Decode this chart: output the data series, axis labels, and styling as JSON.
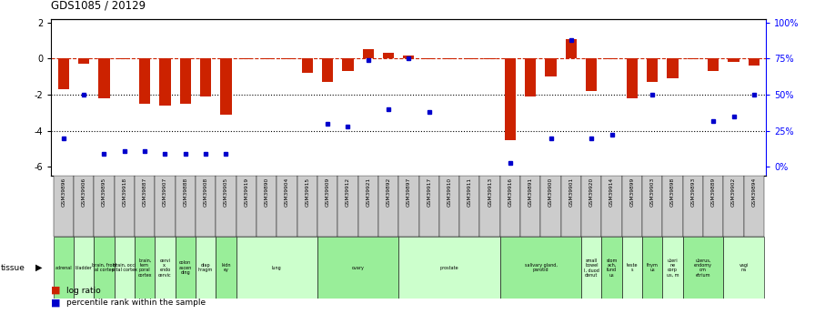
{
  "title": "GDS1085 / 20129",
  "gsm_ids": [
    "GSM39896",
    "GSM39906",
    "GSM39895",
    "GSM39918",
    "GSM39887",
    "GSM39907",
    "GSM39888",
    "GSM39908",
    "GSM39905",
    "GSM39919",
    "GSM39890",
    "GSM39904",
    "GSM39915",
    "GSM39909",
    "GSM39912",
    "GSM39921",
    "GSM39892",
    "GSM39897",
    "GSM39917",
    "GSM39910",
    "GSM39911",
    "GSM39913",
    "GSM39916",
    "GSM39891",
    "GSM39900",
    "GSM39901",
    "GSM39920",
    "GSM39914",
    "GSM39899",
    "GSM39903",
    "GSM39898",
    "GSM39893",
    "GSM39889",
    "GSM39902",
    "GSM39894"
  ],
  "log_ratio": [
    -1.7,
    -0.3,
    -2.2,
    -0.05,
    -2.5,
    -2.6,
    -2.5,
    -2.1,
    -3.1,
    -0.05,
    -0.05,
    -0.05,
    -0.8,
    -1.3,
    -0.7,
    0.5,
    0.3,
    0.15,
    -0.05,
    -0.05,
    -0.05,
    -0.05,
    -4.5,
    -2.1,
    -1.0,
    1.1,
    -1.8,
    -0.05,
    -2.2,
    -1.3,
    -1.1,
    -0.05,
    -0.7,
    -0.2,
    -0.4
  ],
  "pct_rank": [
    20,
    50,
    9,
    11,
    11,
    9,
    9,
    9,
    9,
    null,
    null,
    null,
    null,
    30,
    28,
    74,
    40,
    75,
    38,
    null,
    null,
    null,
    3,
    null,
    20,
    88,
    20,
    22,
    null,
    50,
    null,
    null,
    32,
    35,
    50
  ],
  "tissues": [
    {
      "label": "adrenal",
      "start": 0,
      "end": 1
    },
    {
      "label": "bladder",
      "start": 1,
      "end": 2
    },
    {
      "label": "brain, front\nal cortex",
      "start": 2,
      "end": 3
    },
    {
      "label": "brain, occi\npital cortex",
      "start": 3,
      "end": 4
    },
    {
      "label": "brain,\ntem\nporal\ncortex",
      "start": 4,
      "end": 5
    },
    {
      "label": "cervi\nx,\nendo\ncervic",
      "start": 5,
      "end": 6
    },
    {
      "label": "colon\nascen\nding",
      "start": 6,
      "end": 7
    },
    {
      "label": "diap\nhragm",
      "start": 7,
      "end": 8
    },
    {
      "label": "kidn\ney",
      "start": 8,
      "end": 9
    },
    {
      "label": "lung",
      "start": 9,
      "end": 13
    },
    {
      "label": "ovary",
      "start": 13,
      "end": 17
    },
    {
      "label": "prostate",
      "start": 17,
      "end": 22
    },
    {
      "label": "salivary gland,\nparotid",
      "start": 22,
      "end": 26
    },
    {
      "label": "small\nbowel\nI, duod\ndenut",
      "start": 26,
      "end": 27
    },
    {
      "label": "stom\nach,\nfund\nus",
      "start": 27,
      "end": 28
    },
    {
      "label": "teste\ns",
      "start": 28,
      "end": 29
    },
    {
      "label": "thym\nus",
      "start": 29,
      "end": 30
    },
    {
      "label": "uteri\nne\ncorp\nus, m",
      "start": 30,
      "end": 31
    },
    {
      "label": "uterus,\nendomy\nom\netrium",
      "start": 31,
      "end": 33
    },
    {
      "label": "vagi\nna",
      "start": 33,
      "end": 35
    }
  ],
  "ylim": [
    -6.5,
    2.2
  ],
  "yticks_left": [
    -6,
    -4,
    -2,
    0,
    2
  ],
  "bar_color": "#cc2200",
  "dot_color": "#0000cc",
  "bg_color": "#ffffff",
  "tissue_green": "#99ee99",
  "tissue_lightgreen": "#ccffcc",
  "header_gray": "#cccccc"
}
